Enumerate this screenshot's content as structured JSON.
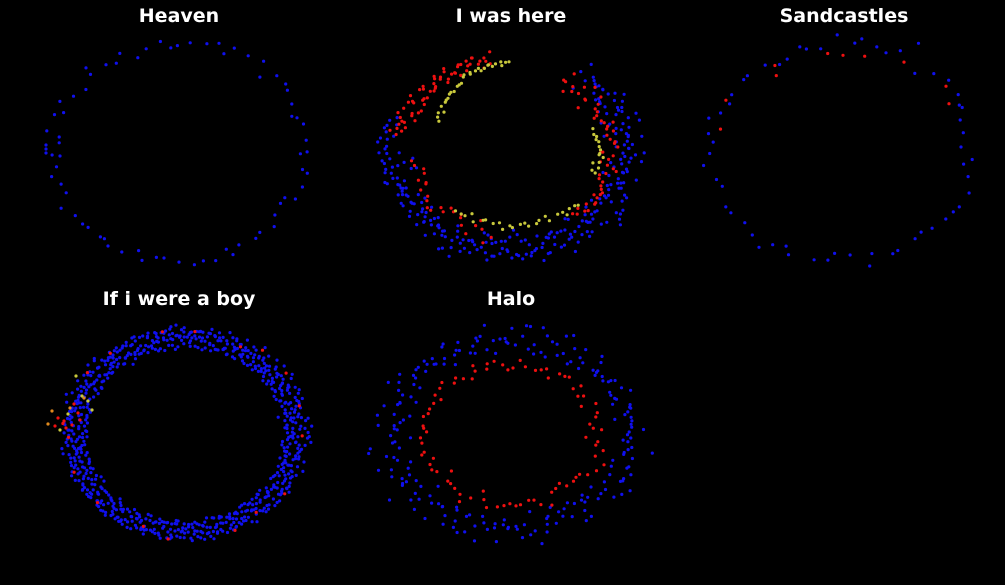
{
  "colors": {
    "background": "#000000",
    "title": "#ffffff",
    "blue": "#1010ee",
    "red": "#ee1010",
    "yellow": "#c8c83c",
    "orange": "#e08a1e"
  },
  "chart_data": [
    {
      "type": "scatter",
      "title": "Heaven",
      "shape": "single ring of points",
      "series": [
        {
          "color": "blue",
          "approx_points": 70
        }
      ]
    },
    {
      "type": "scatter",
      "title": "I was here",
      "shape": "thick ring with red and yellow arcs",
      "series": [
        {
          "color": "blue",
          "approx_points": 260
        },
        {
          "color": "red",
          "approx_points": 110
        },
        {
          "color": "yellow",
          "approx_points": 55
        }
      ]
    },
    {
      "type": "scatter",
      "title": "Sandcastles",
      "shape": "sparse ring",
      "series": [
        {
          "color": "blue",
          "approx_points": 60
        },
        {
          "color": "red",
          "approx_points": 10
        }
      ]
    },
    {
      "type": "scatter",
      "title": "If i were a boy",
      "shape": "dense ring with small cluster on left",
      "series": [
        {
          "color": "blue",
          "approx_points": 750
        },
        {
          "color": "red",
          "approx_points": 30
        },
        {
          "color": "orange",
          "approx_points": 8
        },
        {
          "color": "yellow",
          "approx_points": 6
        }
      ]
    },
    {
      "type": "scatter",
      "title": "Halo",
      "shape": "outer blue ring with inner red ring",
      "series": [
        {
          "color": "blue",
          "approx_points": 220
        },
        {
          "color": "red",
          "approx_points": 85
        }
      ]
    }
  ]
}
